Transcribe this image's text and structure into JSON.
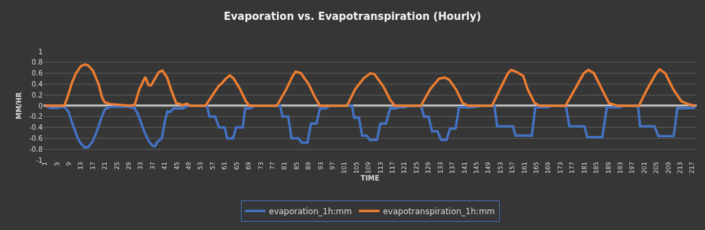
{
  "chart_data": {
    "type": "line",
    "title": "Evaporation vs. Evapotranspiration (Hourly)",
    "xlabel": "TIME",
    "ylabel": "MM/HR",
    "xlim": [
      0.5,
      218.5
    ],
    "xticks": [
      1,
      5,
      9,
      13,
      17,
      21,
      25,
      29,
      33,
      37,
      41,
      45,
      49,
      53,
      57,
      61,
      65,
      69,
      73,
      77,
      81,
      85,
      89,
      93,
      97,
      101,
      105,
      109,
      113,
      117,
      121,
      125,
      129,
      133,
      137,
      141,
      145,
      149,
      153,
      157,
      161,
      165,
      169,
      173,
      177,
      181,
      185,
      189,
      193,
      197,
      201,
      205,
      209,
      213,
      217
    ],
    "ylim": [
      -1,
      1
    ],
    "yticks": [
      -1,
      -0.8,
      -0.6,
      -0.4,
      -0.2,
      0,
      0.2,
      0.4,
      0.6,
      0.8,
      1
    ],
    "grid": "y",
    "legend": "bottom",
    "line_style": "solid",
    "marker": "none",
    "ref_lines": [
      {
        "axis": "y",
        "value": 0,
        "color": "#ffffff"
      }
    ],
    "series": [
      {
        "name": "evaporation_1h:mm",
        "color": "#4472c4",
        "x": [
          1,
          2,
          3,
          5,
          7,
          8,
          9,
          10,
          11,
          12,
          13,
          14.3,
          15.5,
          17,
          18.5,
          20,
          21,
          21.6,
          23,
          29,
          30.8,
          32,
          33,
          34,
          35,
          36,
          37,
          37.7,
          38.5,
          40,
          41,
          41.9,
          42.7,
          44,
          47,
          49,
          55.1,
          55.9,
          57.8,
          59.1,
          61,
          61.8,
          63.8,
          64.8,
          67,
          67.8,
          69.6,
          71,
          79.5,
          80.3,
          82.2,
          83.3,
          85.6,
          86.7,
          88.6,
          89.8,
          91.6,
          92.8,
          94.7,
          96,
          103.5,
          104.2,
          105.8,
          106.9,
          108.4,
          109.4,
          111.8,
          112.9,
          114.8,
          116.2,
          117.9,
          119,
          121,
          122,
          126.5,
          127.5,
          129,
          130.2,
          132,
          133.2,
          135,
          136.2,
          138,
          139.2,
          143.2,
          145,
          147,
          151,
          151.9,
          157.2,
          158,
          163.5,
          164.6,
          169,
          170,
          174.6,
          175,
          176,
          181,
          182,
          187,
          188.5,
          193,
          193.8,
          198.7,
          199,
          199.6,
          204.4,
          205.7,
          210.8,
          212,
          217,
          218
        ],
        "values": [
          0,
          -0.02,
          -0.04,
          -0.04,
          -0.02,
          -0.05,
          -0.12,
          -0.3,
          -0.45,
          -0.6,
          -0.7,
          -0.77,
          -0.76,
          -0.65,
          -0.45,
          -0.2,
          -0.07,
          -0.05,
          -0.02,
          -0.02,
          -0.04,
          -0.15,
          -0.3,
          -0.45,
          -0.58,
          -0.68,
          -0.74,
          -0.75,
          -0.67,
          -0.6,
          -0.3,
          -0.1,
          -0.12,
          -0.05,
          -0.05,
          0,
          0,
          -0.2,
          -0.2,
          -0.4,
          -0.4,
          -0.6,
          -0.6,
          -0.4,
          -0.4,
          -0.05,
          -0.05,
          0,
          0,
          -0.2,
          -0.2,
          -0.6,
          -0.6,
          -0.68,
          -0.68,
          -0.33,
          -0.33,
          -0.05,
          -0.05,
          0,
          0,
          -0.22,
          -0.22,
          -0.55,
          -0.55,
          -0.63,
          -0.63,
          -0.33,
          -0.33,
          -0.05,
          -0.05,
          -0.03,
          -0.03,
          -0.01,
          0,
          -0.2,
          -0.2,
          -0.47,
          -0.47,
          -0.63,
          -0.63,
          -0.42,
          -0.42,
          -0.03,
          -0.03,
          -0.02,
          0,
          0,
          -0.38,
          -0.38,
          -0.55,
          -0.55,
          -0.03,
          -0.03,
          0,
          0,
          -0.05,
          -0.38,
          -0.38,
          -0.58,
          -0.58,
          -0.03,
          -0.03,
          0,
          0,
          -0.05,
          -0.38,
          -0.38,
          -0.56,
          -0.56,
          -0.05,
          -0.04,
          -0.04
        ]
      },
      {
        "name": "evapotranspiration_1h:mm",
        "color": "#ed7d31",
        "x": [
          1,
          7.5,
          8.8,
          10,
          11.4,
          13,
          14.4,
          15.5,
          17,
          18.9,
          20.1,
          21,
          23,
          27.5,
          29.5,
          31,
          32.5,
          34.5,
          35.6,
          36.5,
          39,
          40.2,
          41.8,
          43.1,
          44.8,
          45.6,
          47.1,
          48.2,
          49.7,
          54.6,
          57.6,
          59.1,
          59.8,
          61.4,
          62.7,
          64,
          66.2,
          68.1,
          69.3,
          78.4,
          81.5,
          83.7,
          84.7,
          86.4,
          89,
          90.9,
          92.8,
          101.8,
          104.5,
          107.3,
          109.6,
          111,
          114,
          116.3,
          117.8,
          126.5,
          129.5,
          132.5,
          134.4,
          135.9,
          138.2,
          140.4,
          142.3,
          150.2,
          152.8,
          155.5,
          156.6,
          158.5,
          160.6,
          162.1,
          164.4,
          166,
          174.7,
          177.8,
          180.8,
          182.3,
          184.2,
          186.9,
          189.2,
          191.9,
          199.2,
          201.9,
          205,
          206.1,
          208,
          210.7,
          213.4,
          215.6,
          218
        ],
        "values": [
          0,
          0,
          0.2,
          0.42,
          0.6,
          0.73,
          0.76,
          0.74,
          0.65,
          0.4,
          0.15,
          0.06,
          0.03,
          0.01,
          0,
          0.02,
          0.3,
          0.53,
          0.38,
          0.38,
          0.62,
          0.65,
          0.52,
          0.3,
          0.05,
          0.04,
          0.01,
          0.04,
          0,
          0,
          0.25,
          0.37,
          0.4,
          0.5,
          0.56,
          0.5,
          0.3,
          0.08,
          0,
          0,
          0.3,
          0.55,
          0.63,
          0.6,
          0.4,
          0.18,
          0,
          0,
          0.3,
          0.5,
          0.6,
          0.58,
          0.35,
          0.1,
          0,
          0,
          0.3,
          0.5,
          0.52,
          0.48,
          0.3,
          0.05,
          0,
          0,
          0.3,
          0.6,
          0.66,
          0.62,
          0.55,
          0.3,
          0.05,
          0,
          0,
          0.3,
          0.6,
          0.66,
          0.6,
          0.3,
          0.05,
          0,
          0,
          0.3,
          0.6,
          0.67,
          0.6,
          0.3,
          0.08,
          0.03,
          0
        ]
      }
    ]
  }
}
